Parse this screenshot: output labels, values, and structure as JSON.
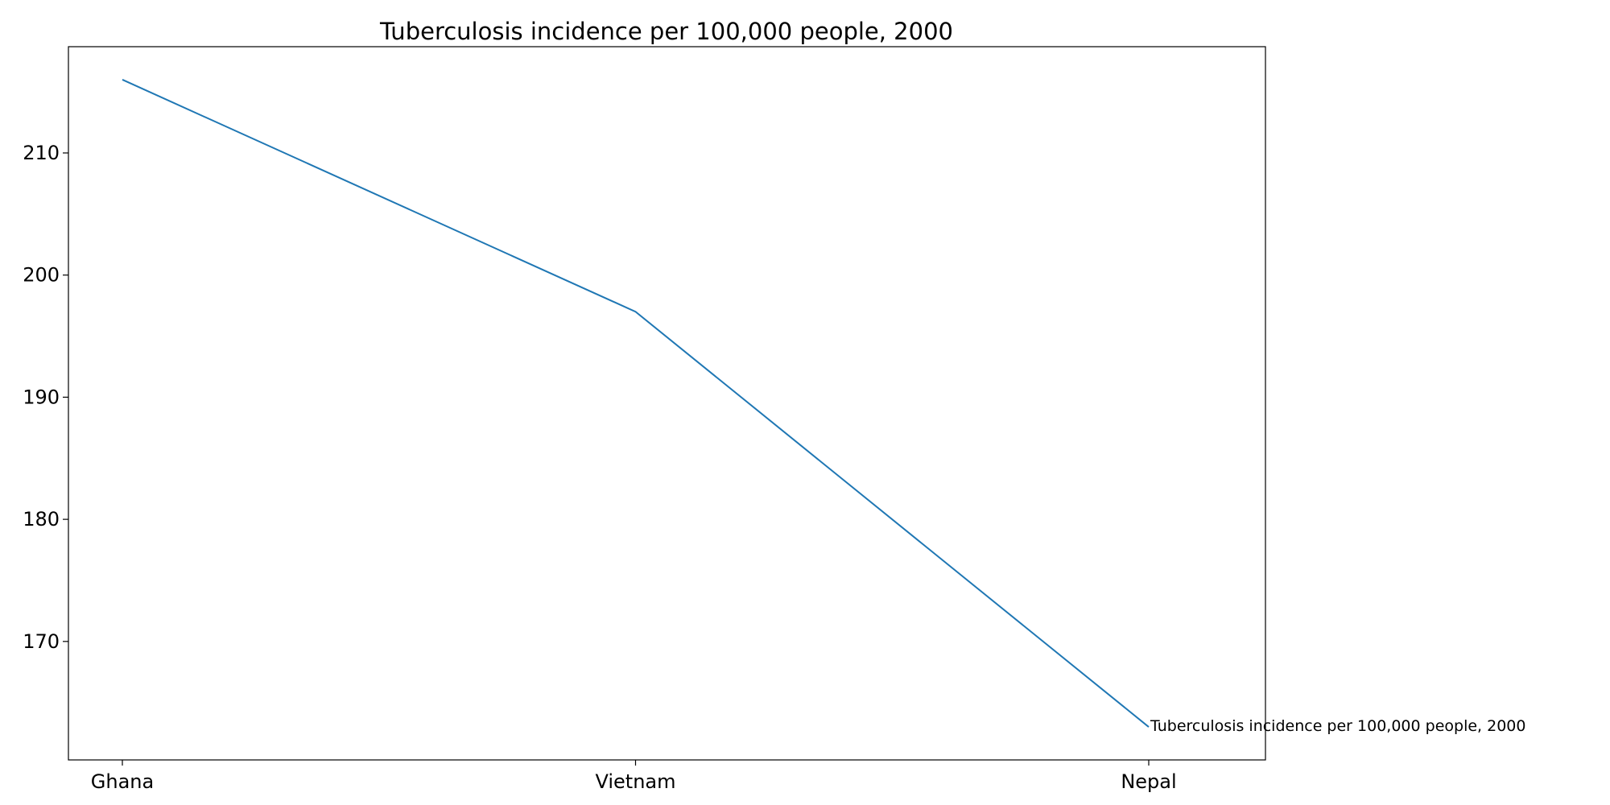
{
  "chart_data": {
    "type": "line",
    "title": "Tuberculosis incidence per 100,000 people, 2000",
    "xlabel": "",
    "ylabel": "",
    "categories": [
      "Ghana",
      "Vietnam",
      "Nepal"
    ],
    "series": [
      {
        "values": [
          216,
          197,
          163
        ]
      }
    ],
    "ylim": [
      160.3,
      218.7
    ],
    "yticks": [
      170,
      180,
      190,
      200,
      210
    ],
    "grid": false,
    "line_color": "#1f77b4",
    "annotation": "Tuberculosis incidence per 100,000 people, 2000"
  }
}
